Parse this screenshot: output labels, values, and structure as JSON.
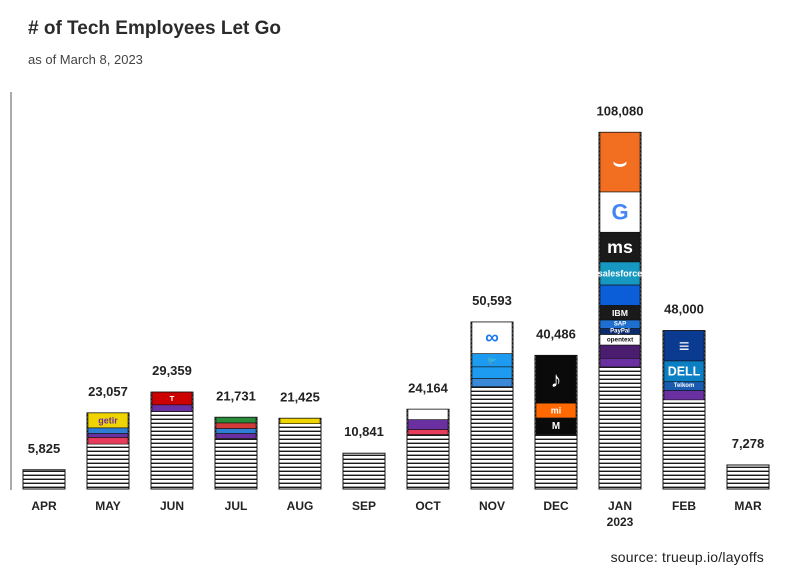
{
  "chart_data": {
    "type": "bar",
    "title": "# of Tech Employees Let Go",
    "subtitle": "as of March 8, 2023",
    "source": "source: trueup.io/layoffs",
    "xlabel": "",
    "ylabel": "",
    "categories": [
      "APR",
      "MAY",
      "JUN",
      "JUL",
      "AUG",
      "SEP",
      "OCT",
      "NOV",
      "DEC",
      "JAN\n2023",
      "FEB",
      "MAR"
    ],
    "values": [
      5825,
      23057,
      29359,
      21731,
      21425,
      10841,
      24164,
      50593,
      40486,
      108080,
      48000,
      7278
    ],
    "value_labels": [
      "5,825",
      "23,057",
      "29,359",
      "21,731",
      "21,425",
      "10,841",
      "24,164",
      "50,593",
      "40,486",
      "108,080",
      "48,000",
      "7,278"
    ],
    "ylim": [
      0,
      120000
    ],
    "grid": false,
    "legend": "none",
    "bar_fill": "#ffffff",
    "bar_stripe_color": "#1a1a1a",
    "bar_outline": "#111111",
    "logo_segments": [
      {
        "bar": 1,
        "top": 23057,
        "bottom": 18500,
        "color": "#f0d400",
        "label": "getir",
        "text_color": "#6a2fa0"
      },
      {
        "bar": 1,
        "top": 18500,
        "bottom": 16800,
        "color": "#2e7fd3"
      },
      {
        "bar": 1,
        "top": 16800,
        "bottom": 15600,
        "color": "#6a2fa0"
      },
      {
        "bar": 1,
        "top": 15600,
        "bottom": 13600,
        "color": "#e63b5a"
      },
      {
        "bar": 2,
        "top": 29359,
        "bottom": 25500,
        "color": "#cc0000",
        "label": "T",
        "text_color": "#ffffff"
      },
      {
        "bar": 2,
        "top": 25500,
        "bottom": 23500,
        "color": "#6a2fa0"
      },
      {
        "bar": 3,
        "top": 21731,
        "bottom": 20000,
        "color": "#2a8c3a"
      },
      {
        "bar": 3,
        "top": 20000,
        "bottom": 18300,
        "color": "#d33a3a"
      },
      {
        "bar": 3,
        "top": 18300,
        "bottom": 16800,
        "color": "#2e7fd3"
      },
      {
        "bar": 3,
        "top": 16800,
        "bottom": 15300,
        "color": "#6a2fa0"
      },
      {
        "bar": 4,
        "top": 21425,
        "bottom": 19800,
        "color": "#f0d400"
      },
      {
        "bar": 6,
        "top": 24164,
        "bottom": 21000,
        "color": "#ffffff"
      },
      {
        "bar": 6,
        "top": 21000,
        "bottom": 18000,
        "color": "#6a2fa0"
      },
      {
        "bar": 6,
        "top": 18000,
        "bottom": 16500,
        "color": "#e63b5a"
      },
      {
        "bar": 7,
        "top": 50593,
        "bottom": 41000,
        "color": "#ffffff",
        "label": "∞",
        "text_color": "#1877f2"
      },
      {
        "bar": 7,
        "top": 41000,
        "bottom": 37000,
        "color": "#1d9bf0",
        "label": "🐦",
        "text_color": "#ffffff"
      },
      {
        "bar": 7,
        "top": 37000,
        "bottom": 33500,
        "color": "#1d9bf0"
      },
      {
        "bar": 7,
        "top": 33500,
        "bottom": 31000,
        "color": "#3a88d8"
      },
      {
        "bar": 8,
        "top": 40486,
        "bottom": 26000,
        "color": "#0a0a0a",
        "label": "♪",
        "text_color": "#ffffff"
      },
      {
        "bar": 8,
        "top": 26000,
        "bottom": 21500,
        "color": "#ff6900",
        "label": "mi",
        "text_color": "#ffffff"
      },
      {
        "bar": 8,
        "top": 21500,
        "bottom": 16500,
        "color": "#0a0a0a",
        "label": "M",
        "text_color": "#ffffff"
      },
      {
        "bar": 9,
        "top": 108080,
        "bottom": 90000,
        "color": "#f26f21",
        "label": "⌣",
        "text_color": "#ffffff"
      },
      {
        "bar": 9,
        "top": 90000,
        "bottom": 77800,
        "color": "#ffffff",
        "label": "G",
        "text_color": "#4285f4"
      },
      {
        "bar": 9,
        "top": 77800,
        "bottom": 68800,
        "color": "#1a1a1a",
        "label": "ms",
        "text_color": "#ffffff"
      },
      {
        "bar": 9,
        "top": 68800,
        "bottom": 61800,
        "color": "#1798c1",
        "label": "salesforce",
        "text_color": "#ffffff"
      },
      {
        "bar": 9,
        "top": 61800,
        "bottom": 55600,
        "color": "#0b5ed7"
      },
      {
        "bar": 9,
        "top": 55600,
        "bottom": 51200,
        "color": "#1a1a1a",
        "label": "IBM",
        "text_color": "#ffffff"
      },
      {
        "bar": 9,
        "top": 51200,
        "bottom": 48600,
        "color": "#1f6fd0",
        "label": "SAP",
        "text_color": "#ffffff"
      },
      {
        "bar": 9,
        "top": 48600,
        "bottom": 46800,
        "color": "#0b2a6b",
        "label": "PayPal",
        "text_color": "#ffffff"
      },
      {
        "bar": 9,
        "top": 46800,
        "bottom": 43600,
        "color": "#ffffff",
        "label": "opentext",
        "text_color": "#111111"
      },
      {
        "bar": 9,
        "top": 43600,
        "bottom": 39600,
        "color": "#4a1d6e"
      },
      {
        "bar": 9,
        "top": 39600,
        "bottom": 37000,
        "color": "#6a2fa0"
      },
      {
        "bar": 10,
        "top": 48000,
        "bottom": 38800,
        "color": "#0b3a91",
        "label": "≡",
        "text_color": "#ffffff"
      },
      {
        "bar": 10,
        "top": 38800,
        "bottom": 32500,
        "color": "#0a7fc4",
        "label": "DELL",
        "text_color": "#ffffff"
      },
      {
        "bar": 10,
        "top": 32500,
        "bottom": 29800,
        "color": "#1a5bb0",
        "label": "Telkom",
        "text_color": "#ffffff"
      },
      {
        "bar": 10,
        "top": 29800,
        "bottom": 27000,
        "color": "#6a2fa0"
      }
    ]
  }
}
